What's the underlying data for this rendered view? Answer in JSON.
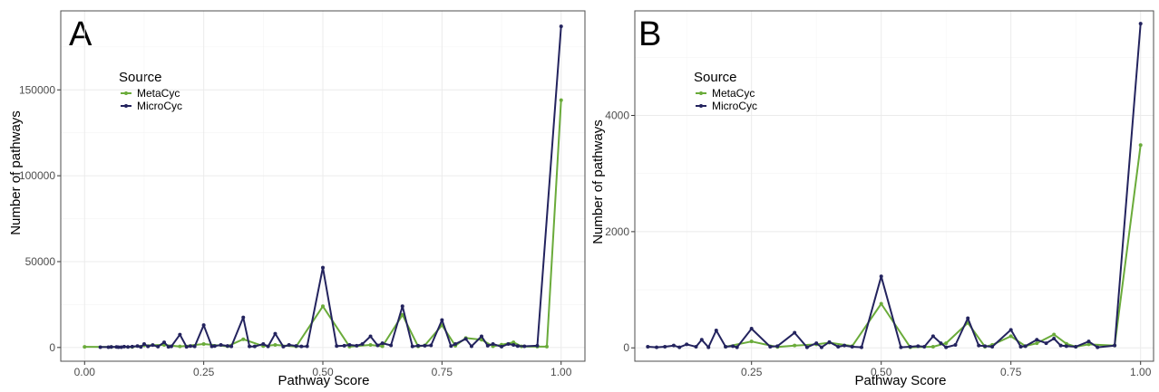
{
  "panels": [
    {
      "letter": "A",
      "xlabel": "Pathway Score",
      "ylabel": "Number of pathways",
      "legend_title": "Source"
    },
    {
      "letter": "B",
      "xlabel": "Pathway Score",
      "ylabel": "Number of pathways",
      "legend_title": "Source"
    }
  ],
  "colors": {
    "MetaCyc": "#6aab3a",
    "MicroCyc": "#23235e",
    "grid": "#ebebeb",
    "border": "#4d4d4d"
  },
  "chart_data": [
    {
      "type": "line",
      "panel": "A",
      "xlabel": "Pathway Score",
      "ylabel": "Number of pathways",
      "xlim": [
        -0.05,
        1.05
      ],
      "ylim": [
        -8000,
        196000
      ],
      "xticks": [
        0.0,
        0.25,
        0.5,
        0.75,
        1.0
      ],
      "xtick_labels": [
        "0.00",
        "0.25",
        "0.50",
        "0.75",
        "1.00"
      ],
      "yticks": [
        0,
        50000,
        100000,
        150000
      ],
      "ytick_labels": [
        "0",
        "50000",
        "100000",
        "150000"
      ],
      "grid": true,
      "legend": {
        "title": "Source",
        "placement": "top-left"
      },
      "series": [
        {
          "name": "MetaCyc",
          "points": [
            [
              0.0,
              400
            ],
            [
              0.056,
              300
            ],
            [
              0.1,
              300
            ],
            [
              0.125,
              1200
            ],
            [
              0.167,
              1500
            ],
            [
              0.2,
              600
            ],
            [
              0.25,
              2000
            ],
            [
              0.3,
              700
            ],
            [
              0.333,
              4800
            ],
            [
              0.375,
              800
            ],
            [
              0.4,
              1500
            ],
            [
              0.444,
              600
            ],
            [
              0.5,
              24000
            ],
            [
              0.556,
              500
            ],
            [
              0.6,
              1500
            ],
            [
              0.625,
              700
            ],
            [
              0.667,
              19000
            ],
            [
              0.7,
              600
            ],
            [
              0.714,
              1200
            ],
            [
              0.75,
              13000
            ],
            [
              0.778,
              1000
            ],
            [
              0.8,
              5500
            ],
            [
              0.833,
              4500
            ],
            [
              0.857,
              700
            ],
            [
              0.875,
              1600
            ],
            [
              0.9,
              3000
            ],
            [
              0.917,
              600
            ],
            [
              0.95,
              500
            ],
            [
              0.97,
              500
            ],
            [
              1.0,
              144000
            ]
          ]
        },
        {
          "name": "MicroCyc",
          "points": [
            [
              0.033,
              200
            ],
            [
              0.05,
              200
            ],
            [
              0.056,
              300
            ],
            [
              0.067,
              300
            ],
            [
              0.071,
              200
            ],
            [
              0.077,
              200
            ],
            [
              0.083,
              500
            ],
            [
              0.091,
              300
            ],
            [
              0.1,
              500
            ],
            [
              0.111,
              800
            ],
            [
              0.118,
              300
            ],
            [
              0.125,
              2000
            ],
            [
              0.133,
              600
            ],
            [
              0.143,
              1400
            ],
            [
              0.154,
              500
            ],
            [
              0.167,
              3000
            ],
            [
              0.176,
              400
            ],
            [
              0.182,
              600
            ],
            [
              0.2,
              7500
            ],
            [
              0.214,
              400
            ],
            [
              0.222,
              800
            ],
            [
              0.231,
              600
            ],
            [
              0.25,
              13000
            ],
            [
              0.267,
              600
            ],
            [
              0.273,
              800
            ],
            [
              0.286,
              1500
            ],
            [
              0.3,
              900
            ],
            [
              0.308,
              600
            ],
            [
              0.333,
              17500
            ],
            [
              0.346,
              600
            ],
            [
              0.357,
              600
            ],
            [
              0.375,
              2000
            ],
            [
              0.385,
              600
            ],
            [
              0.4,
              8000
            ],
            [
              0.417,
              500
            ],
            [
              0.429,
              1500
            ],
            [
              0.444,
              900
            ],
            [
              0.455,
              600
            ],
            [
              0.467,
              700
            ],
            [
              0.5,
              46500
            ],
            [
              0.529,
              800
            ],
            [
              0.545,
              1000
            ],
            [
              0.556,
              1500
            ],
            [
              0.571,
              1000
            ],
            [
              0.583,
              2000
            ],
            [
              0.6,
              6500
            ],
            [
              0.615,
              1200
            ],
            [
              0.625,
              2500
            ],
            [
              0.643,
              1200
            ],
            [
              0.667,
              24000
            ],
            [
              0.688,
              600
            ],
            [
              0.7,
              1000
            ],
            [
              0.714,
              1000
            ],
            [
              0.727,
              1200
            ],
            [
              0.75,
              16000
            ],
            [
              0.769,
              800
            ],
            [
              0.778,
              2000
            ],
            [
              0.8,
              5000
            ],
            [
              0.812,
              700
            ],
            [
              0.833,
              6500
            ],
            [
              0.846,
              1000
            ],
            [
              0.857,
              2000
            ],
            [
              0.875,
              500
            ],
            [
              0.889,
              2000
            ],
            [
              0.9,
              1500
            ],
            [
              0.909,
              800
            ],
            [
              0.923,
              700
            ],
            [
              0.95,
              1000
            ],
            [
              1.0,
              187000
            ]
          ]
        }
      ]
    },
    {
      "type": "line",
      "panel": "B",
      "xlabel": "Pathway Score",
      "ylabel": "Number of pathways",
      "xlim": [
        0.025,
        1.025
      ],
      "ylim": [
        -230,
        5800
      ],
      "xticks": [
        0.25,
        0.5,
        0.75,
        1.0
      ],
      "xtick_labels": [
        "0.25",
        "0.50",
        "0.75",
        "1.00"
      ],
      "yticks": [
        0,
        2000,
        4000
      ],
      "ytick_labels": [
        "0",
        "2000",
        "4000"
      ],
      "grid": true,
      "legend": {
        "title": "Source",
        "placement": "top-left"
      },
      "series": [
        {
          "name": "MetaCyc",
          "points": [
            [
              0.2,
              20
            ],
            [
              0.25,
              110
            ],
            [
              0.3,
              15
            ],
            [
              0.333,
              40
            ],
            [
              0.375,
              60
            ],
            [
              0.4,
              90
            ],
            [
              0.444,
              30
            ],
            [
              0.5,
              760
            ],
            [
              0.556,
              10
            ],
            [
              0.6,
              20
            ],
            [
              0.625,
              80
            ],
            [
              0.667,
              430
            ],
            [
              0.7,
              20
            ],
            [
              0.714,
              50
            ],
            [
              0.75,
              200
            ],
            [
              0.778,
              30
            ],
            [
              0.8,
              80
            ],
            [
              0.833,
              230
            ],
            [
              0.857,
              70
            ],
            [
              0.875,
              20
            ],
            [
              0.9,
              60
            ],
            [
              0.95,
              40
            ],
            [
              1.0,
              3490
            ]
          ]
        },
        {
          "name": "MicroCyc",
          "points": [
            [
              0.05,
              20
            ],
            [
              0.067,
              10
            ],
            [
              0.083,
              20
            ],
            [
              0.1,
              40
            ],
            [
              0.111,
              10
            ],
            [
              0.125,
              60
            ],
            [
              0.143,
              20
            ],
            [
              0.154,
              140
            ],
            [
              0.167,
              10
            ],
            [
              0.182,
              300
            ],
            [
              0.2,
              20
            ],
            [
              0.214,
              30
            ],
            [
              0.222,
              10
            ],
            [
              0.25,
              330
            ],
            [
              0.286,
              20
            ],
            [
              0.3,
              30
            ],
            [
              0.333,
              260
            ],
            [
              0.357,
              10
            ],
            [
              0.375,
              80
            ],
            [
              0.385,
              10
            ],
            [
              0.4,
              100
            ],
            [
              0.417,
              20
            ],
            [
              0.429,
              40
            ],
            [
              0.444,
              20
            ],
            [
              0.462,
              10
            ],
            [
              0.5,
              1230
            ],
            [
              0.538,
              10
            ],
            [
              0.556,
              20
            ],
            [
              0.571,
              30
            ],
            [
              0.583,
              20
            ],
            [
              0.6,
              200
            ],
            [
              0.615,
              80
            ],
            [
              0.625,
              10
            ],
            [
              0.643,
              50
            ],
            [
              0.667,
              510
            ],
            [
              0.688,
              40
            ],
            [
              0.7,
              30
            ],
            [
              0.714,
              20
            ],
            [
              0.75,
              310
            ],
            [
              0.769,
              20
            ],
            [
              0.778,
              30
            ],
            [
              0.8,
              140
            ],
            [
              0.818,
              80
            ],
            [
              0.833,
              160
            ],
            [
              0.846,
              40
            ],
            [
              0.857,
              30
            ],
            [
              0.875,
              20
            ],
            [
              0.9,
              110
            ],
            [
              0.917,
              10
            ],
            [
              0.95,
              40
            ],
            [
              1.0,
              5580
            ]
          ]
        }
      ]
    }
  ]
}
